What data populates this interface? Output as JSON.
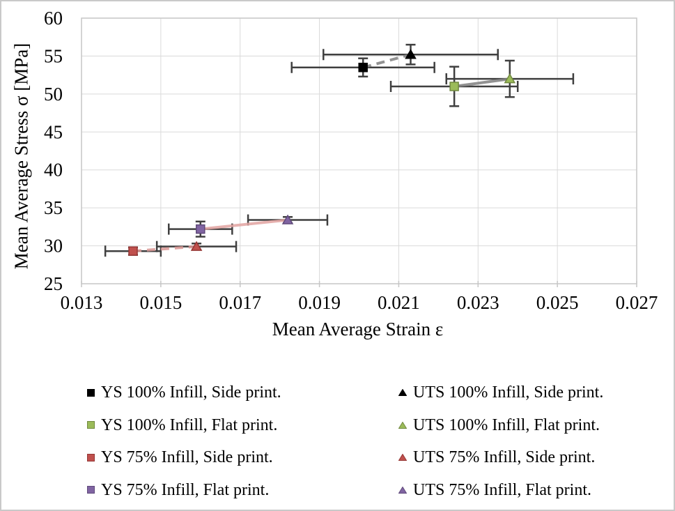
{
  "chart_data": {
    "type": "scatter",
    "title": "",
    "xlabel": "Mean Average Strain ε",
    "ylabel": "Mean Average Stress σ [MPa]",
    "xlim": [
      0.013,
      0.027
    ],
    "ylim": [
      25,
      60
    ],
    "x_ticks": [
      0.013,
      0.015,
      0.017,
      0.019,
      0.021,
      0.023,
      0.025,
      0.027
    ],
    "y_ticks": [
      25,
      30,
      35,
      40,
      45,
      50,
      55,
      60
    ],
    "grid": {
      "horizontal": true,
      "vertical": true
    },
    "grid_color": "#dadada",
    "axis_color": "#c6c6c6",
    "errorbar_color": "#3f3f3f",
    "series": [
      {
        "id": "ys-100-side",
        "name": "YS 100% Infill, Side print.",
        "marker": "square",
        "fill": "#000000",
        "stroke": "#000000",
        "x": 0.0201,
        "y": 53.5,
        "xerr": 0.0018,
        "yerr": 1.2
      },
      {
        "id": "uts-100-side",
        "name": "UTS 100% Infill, Side print.",
        "marker": "triangle",
        "fill": "#000000",
        "stroke": "#000000",
        "x": 0.0213,
        "y": 55.2,
        "xerr": 0.0022,
        "yerr": 1.3
      },
      {
        "id": "ys-100-flat",
        "name": "YS 100% Infill, Flat print.",
        "marker": "square",
        "fill": "#9bbb59",
        "stroke": "#71893f",
        "x": 0.0224,
        "y": 51.0,
        "xerr": 0.0016,
        "yerr": 2.6
      },
      {
        "id": "uts-100-flat",
        "name": "UTS 100% Infill, Flat print.",
        "marker": "triangle",
        "fill": "#9bbb59",
        "stroke": "#71893f",
        "x": 0.0238,
        "y": 52.0,
        "xerr": 0.0016,
        "yerr": 2.4
      },
      {
        "id": "ys-75-side",
        "name": "YS 75% Infill, Side print.",
        "marker": "square",
        "fill": "#c0504d",
        "stroke": "#953735",
        "x": 0.0143,
        "y": 29.3,
        "xerr": 0.0007,
        "yerr": 0.5
      },
      {
        "id": "uts-75-side",
        "name": "UTS 75% Infill, Side print.",
        "marker": "triangle",
        "fill": "#c0504d",
        "stroke": "#953735",
        "x": 0.0159,
        "y": 29.9,
        "xerr": 0.001,
        "yerr": 0.4
      },
      {
        "id": "ys-75-flat",
        "name": "YS 75% Infill, Flat print.",
        "marker": "square",
        "fill": "#8064a2",
        "stroke": "#604a7b",
        "x": 0.016,
        "y": 32.2,
        "xerr": 0.0008,
        "yerr": 1.0
      },
      {
        "id": "uts-75-flat",
        "name": "UTS 75% Infill, Flat print.",
        "marker": "triangle",
        "fill": "#8064a2",
        "stroke": "#604a7b",
        "x": 0.0182,
        "y": 33.4,
        "xerr": 0.001,
        "yerr": 0.4
      }
    ],
    "connectors": [
      {
        "from": 0,
        "to": 1,
        "style": "dashed",
        "color": "#7f7f7f"
      },
      {
        "from": 2,
        "to": 3,
        "style": "solid",
        "color": "#7f7f7f"
      },
      {
        "from": 4,
        "to": 5,
        "style": "dashed",
        "color": "#d99694"
      },
      {
        "from": 6,
        "to": 7,
        "style": "solid",
        "color": "#e2a3a1"
      }
    ],
    "legend_columns": [
      [
        0,
        2,
        4,
        6
      ],
      [
        1,
        3,
        5,
        7
      ]
    ],
    "legend_position": "bottom, two columns"
  }
}
